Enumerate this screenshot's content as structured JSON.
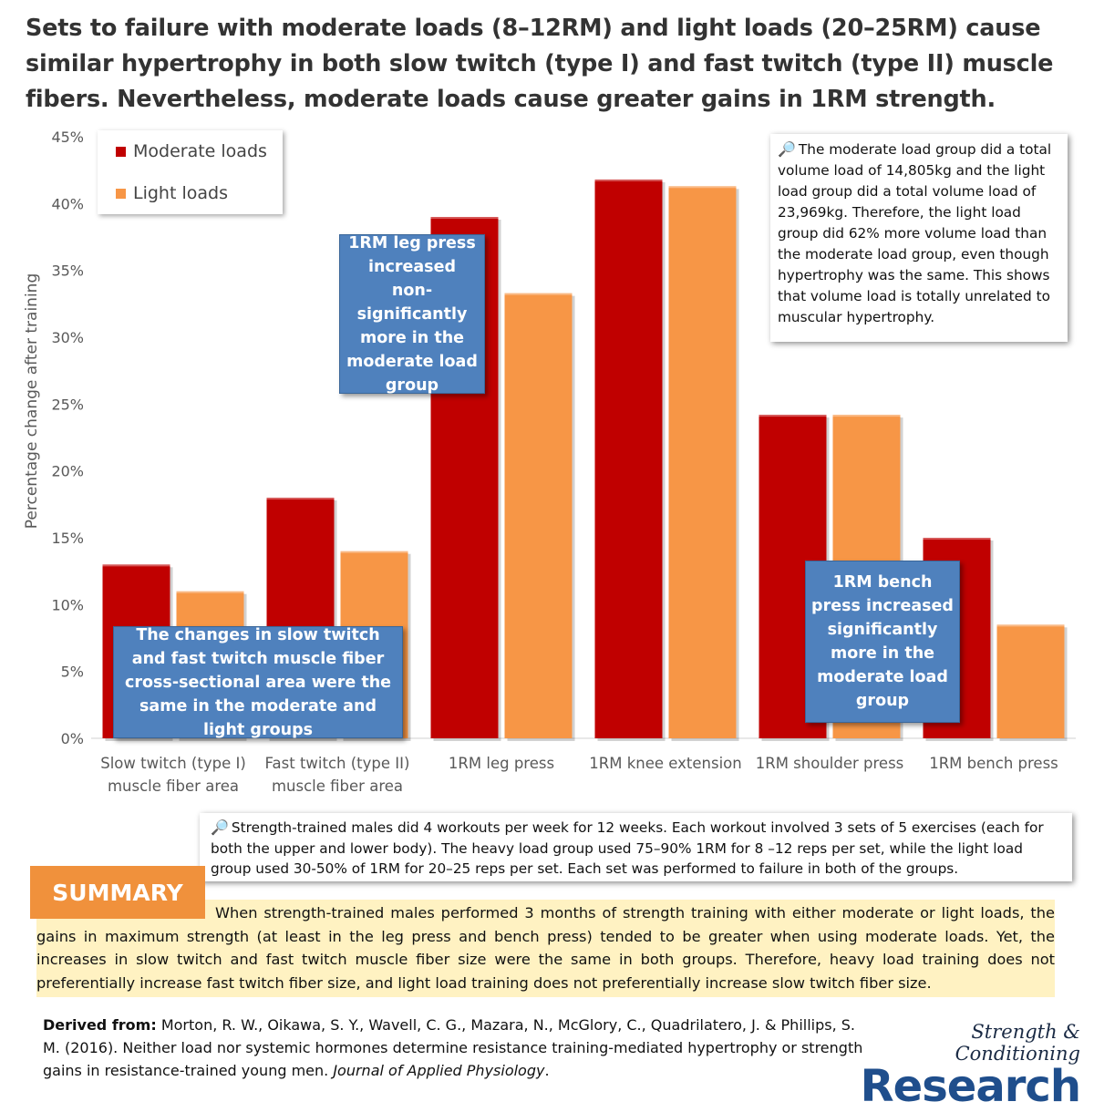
{
  "title": "Sets to failure with moderate loads (8–12RM) and light loads (20–25RM) cause similar hypertrophy in both slow twitch (type I) and fast twitch (type II) muscle fibers. Nevertheless, moderate loads cause greater gains in 1RM strength.",
  "chart_data": {
    "type": "bar",
    "ylabel": "Percentage change after training",
    "ylim": [
      0,
      45
    ],
    "yticks": [
      "0%",
      "5%",
      "10%",
      "15%",
      "20%",
      "25%",
      "30%",
      "35%",
      "40%",
      "45%"
    ],
    "categories": [
      [
        "Slow twitch (type I)",
        "muscle fiber area"
      ],
      [
        "Fast twitch (type II)",
        "muscle fiber area"
      ],
      [
        "1RM leg press"
      ],
      [
        "1RM knee extension"
      ],
      [
        "1RM shoulder press"
      ],
      [
        "1RM bench press"
      ]
    ],
    "series": [
      {
        "name": "Moderate loads",
        "color": "#c00000",
        "values": [
          13,
          18,
          39,
          41.8,
          24.2,
          15
        ]
      },
      {
        "name": "Light loads",
        "color": "#f79646",
        "values": [
          11,
          14,
          33.3,
          41.3,
          24.2,
          8.5
        ]
      }
    ],
    "legend_position": "top-left",
    "grid": false
  },
  "callouts": {
    "fiber": "The changes in slow twitch and fast twitch muscle fiber cross-sectional area were the same in the moderate and light groups",
    "leg": "1RM leg press increased non-significantly more in the moderate load group",
    "bench": "1RM bench press increased significantly more in the moderate load group"
  },
  "volume_note": "The moderate load group did a total volume load of 14,805kg and the light load group did a total volume load of 23,969kg. Therefore, the light load group did 62% more volume load than the moderate load group, even though hypertrophy was the same. This shows that volume load is totally unrelated to muscular hypertrophy.",
  "methods_note": "Strength-trained males did 4 workouts per week for 12 weeks. Each workout involved 3 sets of 5 exercises (each for both the upper and lower body). The heavy load group used 75–90% 1RM for 8 –12 reps per set, while the light load group used 30-50% of 1RM for 20–25 reps per set. Each set was performed to failure in both of the groups.",
  "summary": {
    "label": "SUMMARY",
    "text": "When strength-trained males performed 3 months of strength training with either moderate or light loads, the gains in maximum strength (at least in the leg press and bench press) tended to be greater when using moderate loads. Yet, the increases in slow twitch and fast twitch muscle fiber size were the same in both groups. Therefore, heavy load training does not preferentially increase fast twitch fiber size, and light load training does not preferentially increase slow twitch fiber size."
  },
  "citation": {
    "label": "Derived from:",
    "text": "Morton, R. W., Oikawa, S. Y., Wavell, C. G., Mazara, N., McGlory, C., Quadrilatero, J. & Phillips, S. M. (2016). Neither load nor systemic hormones determine resistance training-mediated hypertrophy or strength gains in resistance-trained young men.",
    "journal": "Journal of Applied Physiology",
    "end": "."
  },
  "logo": {
    "top": "Strength & Conditioning",
    "bottom": "Research"
  },
  "icons": {
    "note": "magnifier-icon"
  }
}
